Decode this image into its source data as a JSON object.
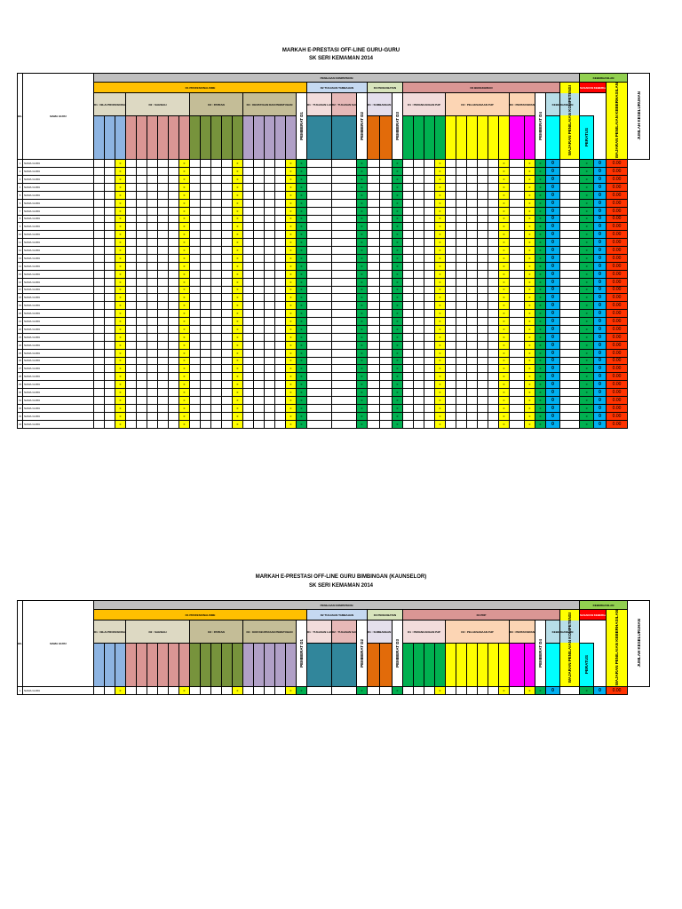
{
  "sheet1": {
    "title_line1": "MARKAH E-PRESTASI OFF-LINE GURU-GURU",
    "title_line2": "SK SERI KEMAMAN 2014",
    "header": {
      "bil": "BIL",
      "nama_guru": "NAMA GURU",
      "penilaian_kompetensi": "PENILAIAN KOMPETENSI",
      "keberhasilan": "KEBERHASILAN",
      "d1": "D1 PROFESIONALISME",
      "d2": "D2 TUGASAN TAMBAHAN",
      "d3": "D3 PENGUBATAN",
      "d4": "D4 BENGKHIRAN",
      "d1_sub": [
        "D1 : NILAI PROFESIONAL",
        "D2 : SAHSIAH",
        "D3 : PATRAN",
        "D4 : KEUPAYAAN DAN PEMATUHAN"
      ],
      "d2_sub": [
        "D1 : TUGASAN LAIN",
        "D2 : TUGASAN SAMPINGAN"
      ],
      "d3_sub": [
        "D1 : SUMBANGAN GURU"
      ],
      "d4_sub": [
        "D1 : PERANCANGAN PdP",
        "D2 : PELAKSANAAN PdP",
        "D3 : PENTAKSIRAN PdP"
      ],
      "ker_sub": [
        "SASARAN KEBERHASILAN",
        "KEBERHASILAN"
      ],
      "pemberat": [
        "PEMBERAT D1",
        "PEMBERAT D2",
        "PEMBERAT D3",
        "PEMBERAT D4"
      ],
      "wajaran_kompetensi": "WAJARAN PENILAIAN KOMPETENSI",
      "peratus": "PERATUS",
      "wajaran_keberhasilan": "WAJARAN PENILAIAN KEBERHASILAN",
      "jumlah": "JUMLAH KESELURUHAN"
    },
    "row_name": "NAMA GURU",
    "row_count": 34,
    "cell_values": {
      "sum": "0",
      "pemberat": "0",
      "wajaran": "0",
      "total": "0.00"
    }
  },
  "sheet2": {
    "title_line1": "MARKAH E-PRESTASI OFF-LINE GURU BIMBINGAN (KAUNSELOR)",
    "title_line2": "SK SERI KEMAMAN 2014",
    "header": {
      "bil": "BIL",
      "nama_guru": "NAMA GURU",
      "penilaian_kompetensi": "PENILAIAN KOMPETENSI",
      "keberhasilan": "KEBERHASILAN",
      "d1": "D1 PROFESIONALISME",
      "d2": "D2 TUGASAN TAMBAHAN",
      "d3": "D3 PENGUBATAN",
      "d4": "D4 PDP",
      "d1_sub": [
        "D1 : NILAI PROFESIONAL",
        "D2 : SAHSIAH",
        "D3 : PATRAN",
        "D4 : KOR KEUPAYAAN PEMATUHAN"
      ],
      "d2_sub": [
        "D1 : TUGASAN LAIN",
        "D2 : TUGASAN SAMPINGAN"
      ],
      "d3_sub": [
        "D1 : SUMBANGAN LAIN"
      ],
      "d4_sub": [
        "D1 : PERANCANGAN PdP",
        "D2 : PELAKSANAAN PdP",
        "D3 : PENTAKSIRAN PdP"
      ],
      "ker_sub": [
        "SASARAN KEBERHASILAN",
        "KEBERHASILAN"
      ],
      "pemberat": [
        "PEMBERAT D1",
        "PEMBERAT D2",
        "PEMBERAT D3",
        "PEMBERAT D4"
      ],
      "wajaran_kompetensi": "WAJARAN PENILAIAN KOMPETENSI",
      "peratus": "PERATUS",
      "wajaran_keberhasilan": "WAJARAN PENILAIAN KEBERHASILAN",
      "jumlah": "JUMLAH KESELURUHAN"
    },
    "row_name": "NAMA GURU",
    "row_count": 1,
    "cell_values": {
      "sum": "0",
      "pemberat": "0",
      "wajaran": "0",
      "total": "0.00"
    }
  }
}
